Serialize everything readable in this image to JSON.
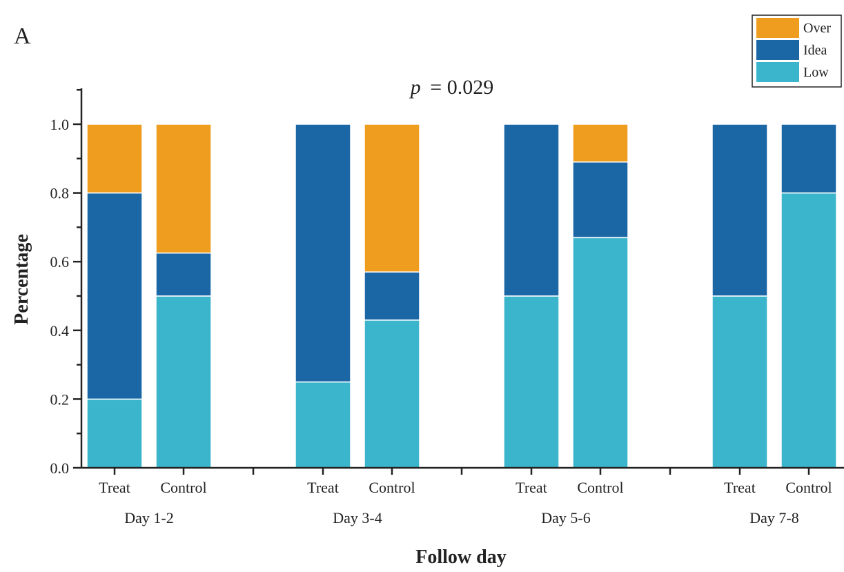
{
  "chart_data": {
    "type": "bar",
    "stacked": true,
    "panel_label": "A",
    "annotation": {
      "p_symbol": "p",
      "p_text": "= 0.029"
    },
    "xlabel": "Follow day",
    "ylabel": "Percentage",
    "ylim": [
      0,
      1.0
    ],
    "yticks": [
      "0.0",
      "0.2",
      "0.4",
      "0.6",
      "0.8",
      "1.0"
    ],
    "groups": [
      "Day 1-2",
      "Day 3-4",
      "Day 5-6",
      "Day 7-8"
    ],
    "categories": [
      "Treat",
      "Control",
      "Treat",
      "Control",
      "Treat",
      "Control",
      "Treat",
      "Control"
    ],
    "series": [
      {
        "name": "Low",
        "color": "#3ab5cb",
        "values": [
          0.2,
          0.5,
          0.25,
          0.43,
          0.5,
          0.67,
          0.5,
          0.8
        ]
      },
      {
        "name": "Idea",
        "color": "#1b67a6",
        "values": [
          0.6,
          0.125,
          0.75,
          0.14,
          0.5,
          0.22,
          0.5,
          0.2
        ]
      },
      {
        "name": "Over",
        "color": "#ef9d1e",
        "values": [
          0.2,
          0.375,
          0.0,
          0.43,
          0.0,
          0.11,
          0.0,
          0.0
        ]
      }
    ],
    "legend_position": "top-right",
    "grid": false
  }
}
